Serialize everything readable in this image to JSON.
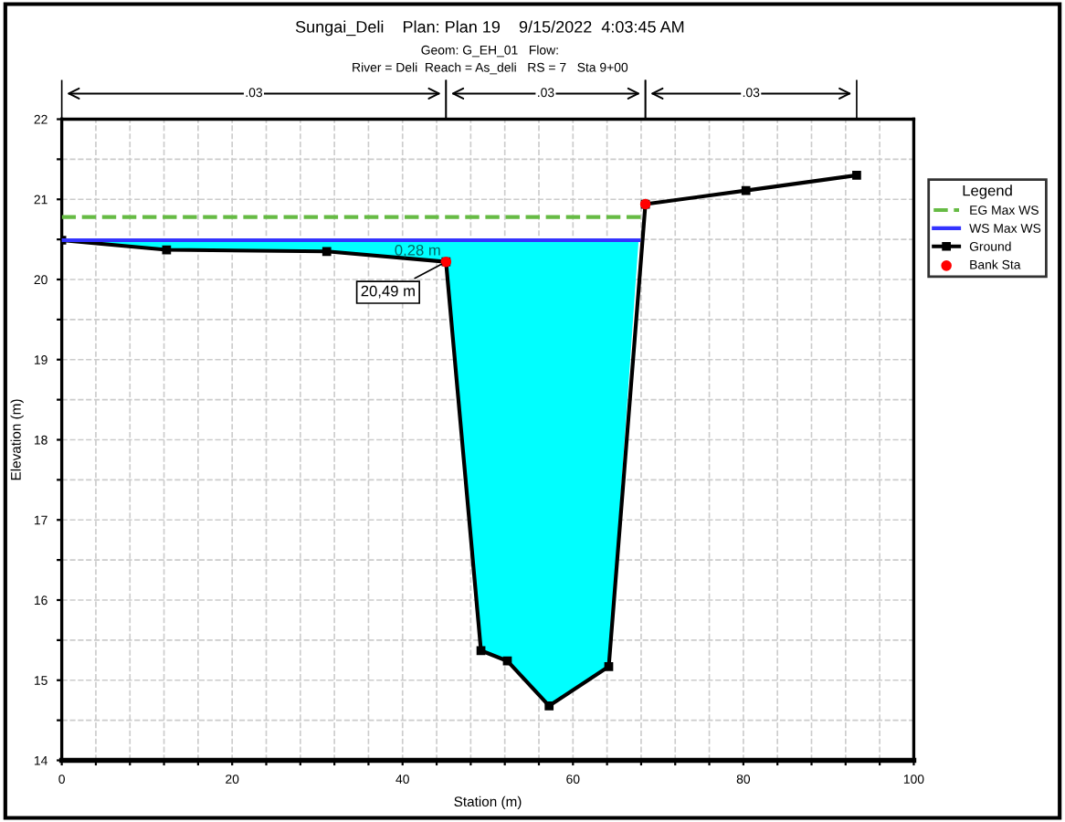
{
  "chart_data": {
    "type": "line",
    "title": "Sungai_Deli    Plan: Plan 19    9/15/2022  4:03:45 AM",
    "subtitle": "Geom: G_EH_01   Flow:\nRiver = Deli  Reach = As_deli   RS = 7   Sta 9+00",
    "xlabel": "Station (m)",
    "ylabel": "Elevation (m)",
    "legend_title": "Legend",
    "legend": "right",
    "xlim": [
      0,
      100
    ],
    "xticks": [
      0,
      {
        "value": 4,
        "label": null
      },
      {
        "value": 8,
        "label": null
      },
      {
        "value": 12,
        "label": null
      },
      {
        "value": 16,
        "label": null
      },
      20,
      {
        "value": 24,
        "label": null
      },
      {
        "value": 28,
        "label": null
      },
      {
        "value": 32,
        "label": null
      },
      {
        "value": 36,
        "label": null
      },
      40,
      {
        "value": 44,
        "label": null
      },
      {
        "value": 48,
        "label": null
      },
      {
        "value": 52,
        "label": null
      },
      {
        "value": 56,
        "label": null
      },
      60,
      {
        "value": 64,
        "label": null
      },
      {
        "value": 68,
        "label": null
      },
      {
        "value": 72,
        "label": null
      },
      {
        "value": 76,
        "label": null
      },
      80,
      {
        "value": 84,
        "label": null
      },
      {
        "value": 88,
        "label": null
      },
      {
        "value": 92,
        "label": null
      },
      {
        "value": 96,
        "label": null
      },
      100
    ],
    "ylim": [
      14,
      22
    ],
    "yticks": [
      14,
      {
        "value": 14.5,
        "label": null
      },
      15,
      {
        "value": 15.5,
        "label": null
      },
      16,
      {
        "value": 16.5,
        "label": null
      },
      17,
      {
        "value": 17.5,
        "label": null
      },
      18,
      {
        "value": 18.5,
        "label": null
      },
      19,
      {
        "value": 19.5,
        "label": null
      },
      20,
      {
        "value": 20.5,
        "label": null
      },
      21,
      {
        "value": 21.5,
        "label": null
      },
      22
    ],
    "grid": true,
    "series": [
      {
        "name": "EG Max WS",
        "color": "#66bb44",
        "line_style": "dashed",
        "marker": "none",
        "x": [
          0,
          68.5
        ],
        "values": [
          20.78,
          20.78
        ]
      },
      {
        "name": "WS Max WS",
        "color": "#3333ff",
        "line_style": "solid",
        "marker": "none",
        "x": [
          0,
          12.3,
          31.1,
          45.1,
          49.2,
          52.3,
          57.2,
          64.2,
          67.7
        ],
        "values": [
          20.49,
          20.49,
          20.49,
          20.49,
          20.49,
          20.49,
          20.49,
          20.49,
          20.49
        ],
        "lower": [
          20.49,
          20.37,
          20.35,
          20.22,
          15.37,
          15.24,
          14.68,
          15.17,
          20.49
        ],
        "upper": [
          20.49,
          20.49,
          20.49,
          20.49,
          20.49,
          20.49,
          20.49,
          20.49,
          20.49
        ]
      },
      {
        "name": "Ground",
        "color": "#000000",
        "line_style": "solid",
        "marker": "square",
        "x": [
          0,
          12.3,
          31.1,
          45.1,
          49.2,
          52.3,
          57.2,
          64.2,
          68.5,
          80.3,
          93.3
        ],
        "values": [
          20.49,
          20.37,
          20.35,
          20.22,
          15.37,
          15.24,
          14.68,
          15.17,
          20.94,
          21.11,
          21.3
        ]
      },
      {
        "name": "Bank Sta",
        "type": "scatter",
        "color": "#ff0000",
        "marker": "circle",
        "x": [
          45.1,
          68.5
        ],
        "values": [
          20.22,
          20.94
        ]
      }
    ],
    "annotations": [
      ".03",
      ".03",
      ".03",
      {
        "text": "0,28 m",
        "x": 45.1,
        "y": 20.35
      },
      {
        "text": "20,49 m",
        "x": 45.1,
        "y": 20.22
      }
    ]
  }
}
